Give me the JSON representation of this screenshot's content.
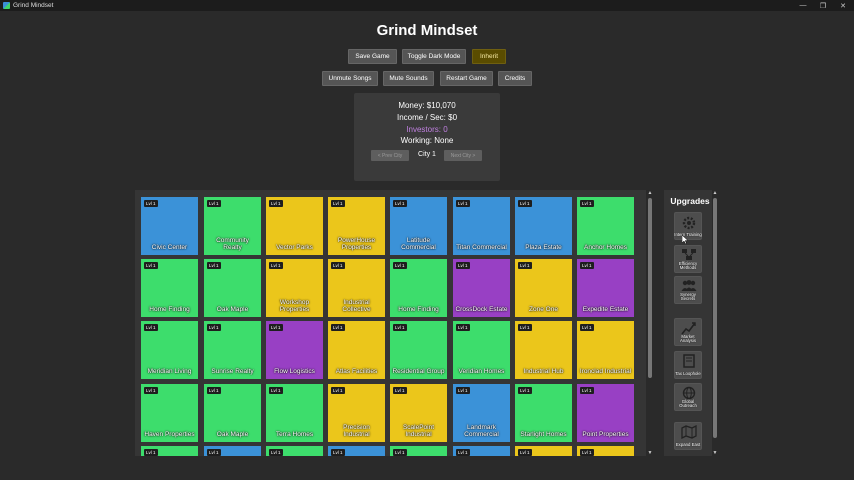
{
  "window": {
    "title": "Grind Mindset",
    "controls": [
      "—",
      "❐",
      "✕"
    ]
  },
  "page_title": "Grind Mindset",
  "buttons_row1": [
    {
      "label": "Save Game"
    },
    {
      "label": "Toggle Dark Mode"
    },
    {
      "label": "Inherit"
    }
  ],
  "buttons_row2": [
    {
      "label": "Unmute Songs"
    },
    {
      "label": "Mute Sounds"
    },
    {
      "label": "Restart Game"
    },
    {
      "label": "Credits"
    }
  ],
  "stats": {
    "money": "Money: $10,070",
    "income": "Income / Sec: $0",
    "investors": "Investors: 0",
    "working": "Working: None",
    "prev_city": "< Prev City",
    "city": "City 1",
    "next_city": "Next City >"
  },
  "colors": {
    "blue": "#3b92d8",
    "green": "#3ddd6c",
    "yellow": "#ebc61b",
    "purple": "#9840c4",
    "inherit_button": "#5a4c00"
  },
  "businesses": [
    [
      {
        "level": "Lvl 1",
        "name": "Civic Center",
        "color": "blue"
      },
      {
        "level": "Lvl 1",
        "name": "Community Realty",
        "color": "green"
      },
      {
        "level": "Lvl 1",
        "name": "Vector Parks",
        "color": "yellow"
      },
      {
        "level": "Lvl 1",
        "name": "PowerHouse Properties",
        "color": "yellow"
      },
      {
        "level": "Lvl 1",
        "name": "Latitude Commercial",
        "color": "blue"
      },
      {
        "level": "Lvl 1",
        "name": "Titan Commercial",
        "color": "blue"
      },
      {
        "level": "Lvl 1",
        "name": "Plaza Estate",
        "color": "blue"
      },
      {
        "level": "Lvl 1",
        "name": "Anchor Homes",
        "color": "green"
      }
    ],
    [
      {
        "level": "Lvl 1",
        "name": "Home Finding",
        "color": "green"
      },
      {
        "level": "Lvl 1",
        "name": "Oak Maple",
        "color": "green"
      },
      {
        "level": "Lvl 1",
        "name": "Workshop Properties",
        "color": "yellow"
      },
      {
        "level": "Lvl 1",
        "name": "Industrial Collective",
        "color": "yellow"
      },
      {
        "level": "Lvl 1",
        "name": "Home Finding",
        "color": "green"
      },
      {
        "level": "Lvl 1",
        "name": "CrossDock Estate",
        "color": "purple"
      },
      {
        "level": "Lvl 1",
        "name": "Zone One",
        "color": "yellow"
      },
      {
        "level": "Lvl 1",
        "name": "Expedite Estate",
        "color": "purple"
      }
    ],
    [
      {
        "level": "Lvl 1",
        "name": "Meridian Living",
        "color": "green"
      },
      {
        "level": "Lvl 1",
        "name": "Sunrise Realty",
        "color": "green"
      },
      {
        "level": "Lvl 1",
        "name": "Flow Logistics",
        "color": "purple"
      },
      {
        "level": "Lvl 1",
        "name": "Atlas Facilities",
        "color": "yellow"
      },
      {
        "level": "Lvl 1",
        "name": "Residential Group",
        "color": "green"
      },
      {
        "level": "Lvl 1",
        "name": "Veridian Homes",
        "color": "green"
      },
      {
        "level": "Lvl 1",
        "name": "Industrial Hub",
        "color": "yellow"
      },
      {
        "level": "Lvl 1",
        "name": "Ironclad Industrial",
        "color": "yellow"
      }
    ],
    [
      {
        "level": "Lvl 1",
        "name": "Haven Properties",
        "color": "green"
      },
      {
        "level": "Lvl 1",
        "name": "Oak Maple",
        "color": "green"
      },
      {
        "level": "Lvl 1",
        "name": "Terra Homes",
        "color": "green"
      },
      {
        "level": "Lvl 1",
        "name": "Precision Industrial",
        "color": "yellow"
      },
      {
        "level": "Lvl 1",
        "name": "ScalePoint Industrial",
        "color": "yellow"
      },
      {
        "level": "Lvl 1",
        "name": "Landmark Commercial",
        "color": "blue"
      },
      {
        "level": "Lvl 1",
        "name": "Starlight Homes",
        "color": "green"
      },
      {
        "level": "Lvl 1",
        "name": "Point Properties",
        "color": "purple"
      }
    ],
    [
      {
        "level": "Lvl 1",
        "name": "",
        "color": "green"
      },
      {
        "level": "Lvl 1",
        "name": "",
        "color": "blue"
      },
      {
        "level": "Lvl 1",
        "name": "",
        "color": "green"
      },
      {
        "level": "Lvl 1",
        "name": "",
        "color": "blue"
      },
      {
        "level": "Lvl 1",
        "name": "",
        "color": "green"
      },
      {
        "level": "Lvl 1",
        "name": "",
        "color": "blue"
      },
      {
        "level": "Lvl 1",
        "name": "",
        "color": "yellow"
      },
      {
        "level": "Lvl 1",
        "name": "",
        "color": "yellow"
      }
    ]
  ],
  "upgrades": {
    "title": "Upgrades",
    "items": [
      {
        "label": "Intern Training",
        "icon": "gear-icon"
      },
      {
        "label": "Efficiency Methods",
        "icon": "flow-icon"
      },
      {
        "label": "Synergy Secrets",
        "icon": "people-icon"
      },
      {
        "label": "Market Analysis",
        "icon": "chart-icon"
      },
      {
        "label": "Tax Loophole",
        "icon": "document-icon"
      },
      {
        "label": "Global Outreach",
        "icon": "globe-icon"
      },
      {
        "label": "Expand East",
        "icon": "map-icon"
      }
    ]
  }
}
